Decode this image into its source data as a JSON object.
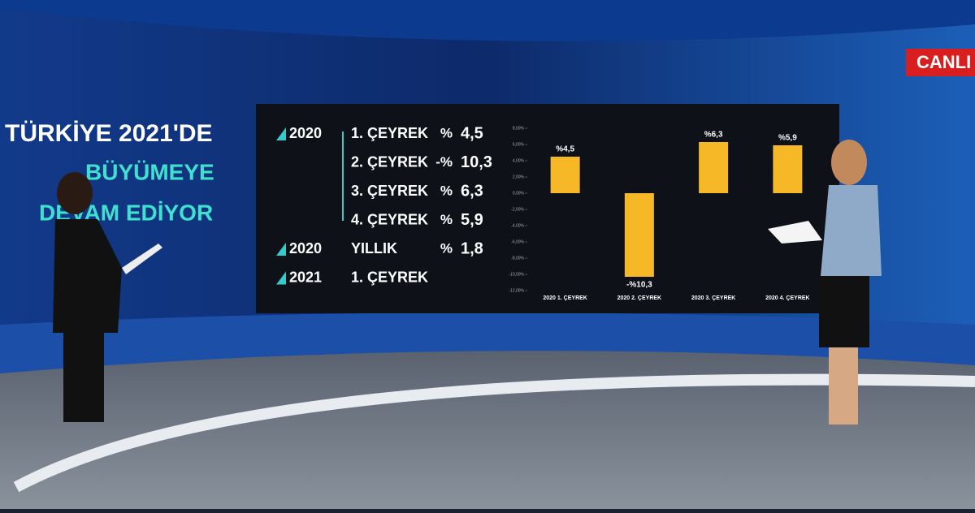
{
  "live_badge": "CANLI",
  "headline": [
    "TÜRKİYE 2021'DE",
    "BÜYÜMEYE",
    "DEVAM EDİYOR"
  ],
  "table": {
    "rows": [
      {
        "year": "2020",
        "period": "1. ÇEYREK",
        "sign": "%",
        "value": "4,5"
      },
      {
        "period": "2. ÇEYREK",
        "sign": "-%",
        "value": "10,3"
      },
      {
        "period": "3. ÇEYREK",
        "sign": "%",
        "value": "6,3"
      },
      {
        "period": "4. ÇEYREK",
        "sign": "%",
        "value": "5,9"
      },
      {
        "year": "2020",
        "period": "YILLIK",
        "sign": "%",
        "value": "1,8"
      },
      {
        "year": "2021",
        "period": "1. ÇEYREK"
      }
    ]
  },
  "chart_data": {
    "type": "bar",
    "categories": [
      "2020 1. ÇEYREK",
      "2020 2. ÇEYREK",
      "2020 3. ÇEYREK",
      "2020 4. ÇEYREK"
    ],
    "values": [
      4.5,
      -10.3,
      6.3,
      5.9
    ],
    "value_labels": [
      "%4,5",
      "-%10,3",
      "%6,3",
      "%5,9"
    ],
    "color": "#f6b826",
    "ylim": [
      -12,
      8
    ],
    "yticks": [
      {
        "value": 8,
        "label": "8,00%"
      },
      {
        "value": 6,
        "label": "6,00%"
      },
      {
        "value": 4,
        "label": "4,00%"
      },
      {
        "value": 2,
        "label": "2,00%"
      },
      {
        "value": 0,
        "label": "0,00%"
      },
      {
        "value": -2,
        "label": "-2,00%"
      },
      {
        "value": -4,
        "label": "-4,00%"
      },
      {
        "value": -6,
        "label": "-6,00%"
      },
      {
        "value": -8,
        "label": "-8,00%"
      },
      {
        "value": -10,
        "label": "-10,00%"
      },
      {
        "value": -12,
        "label": "-12,00%"
      }
    ]
  }
}
